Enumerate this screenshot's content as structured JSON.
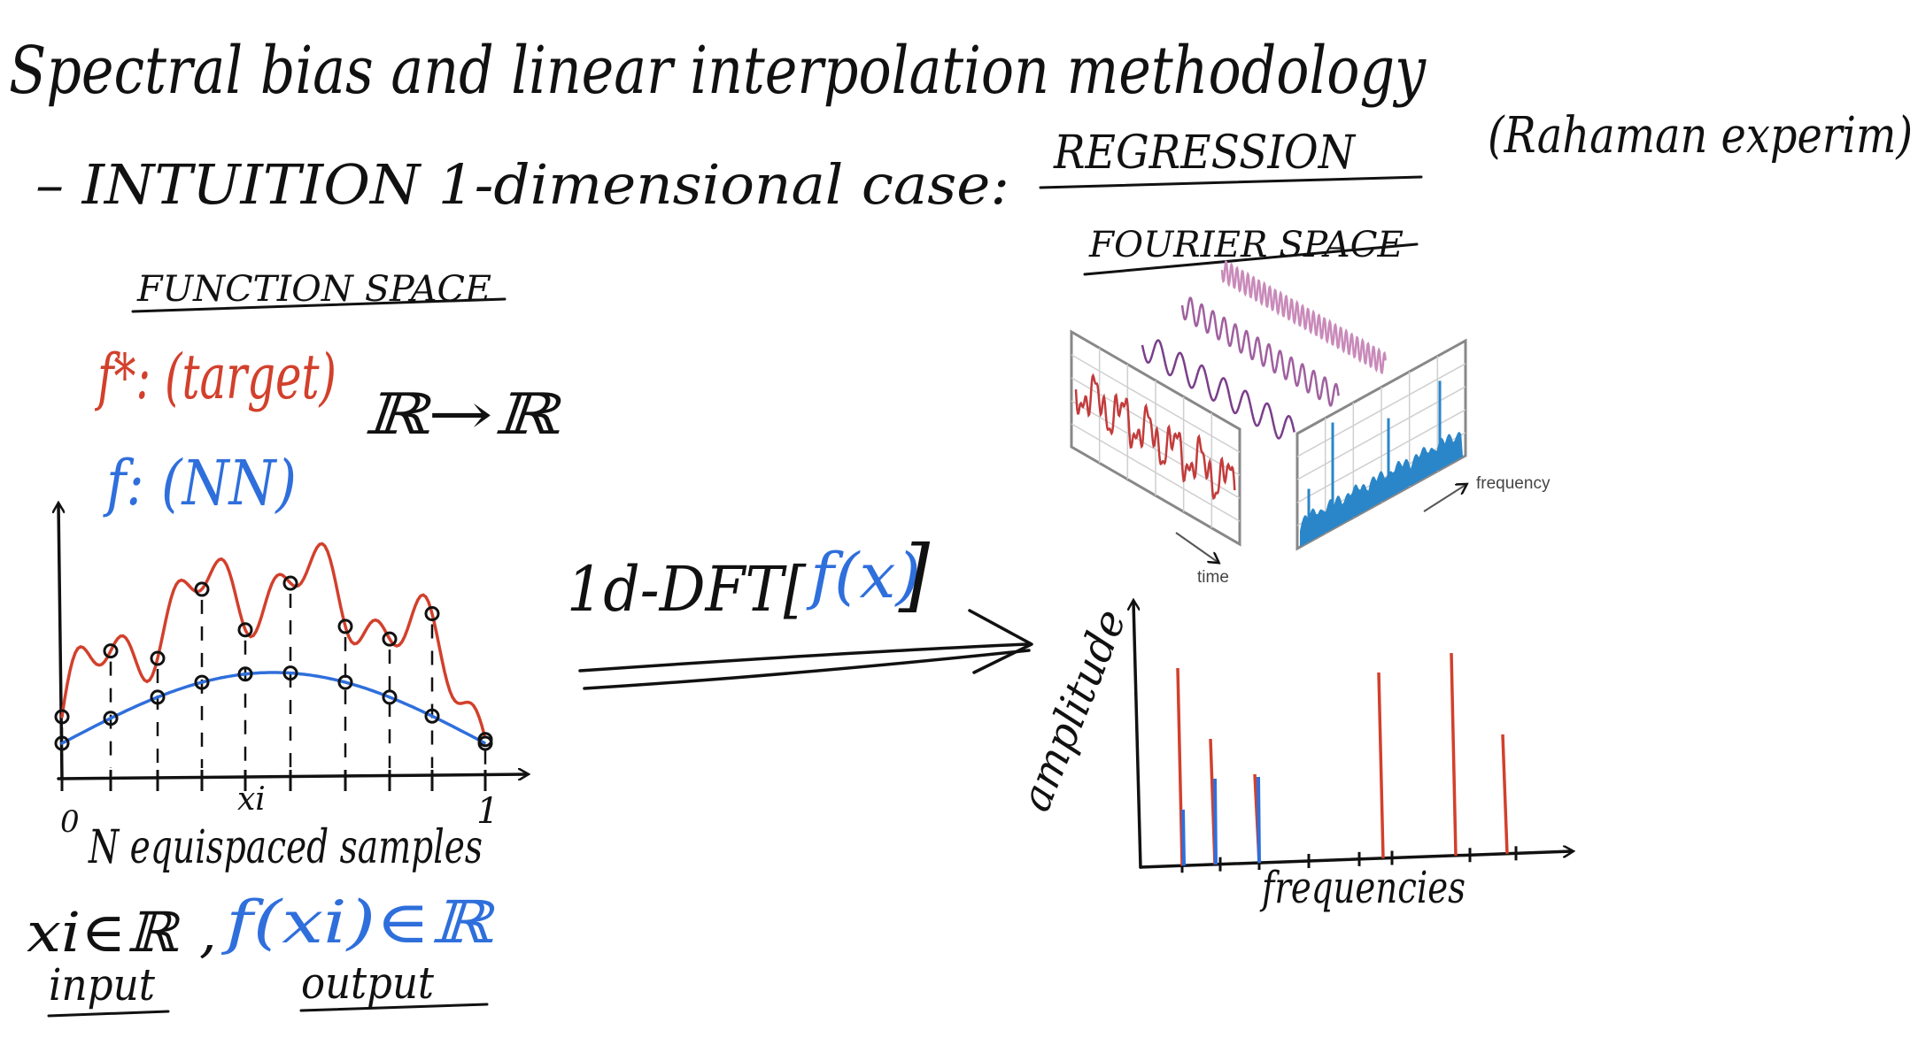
{
  "title": "Spectral bias and linear interpolation methodology",
  "subtitle": {
    "prefix": "– INTUITION 1-dimensional case:",
    "highlight": "REGRESSION",
    "note": "(Rahaman experim)"
  },
  "function_space": {
    "heading": "FUNCTION SPACE",
    "target_label": "f*: (target)",
    "mapping": "ℝ→ℝ",
    "nn_label": "f: (NN)",
    "x_start": "0",
    "x_end": "1",
    "xi_label": "xi",
    "samples_caption": "N equispaced samples",
    "input_expr": "xi∈ℝ",
    "comma": ",",
    "output_expr": "f(xi)∈ℝ",
    "input_label": "input",
    "output_label": "output",
    "colors": {
      "target": "#d2402c",
      "nn": "#2f6fdc",
      "ink": "#111111"
    }
  },
  "transform_label": {
    "prefix": "1d-DFT[",
    "arg": "f(x)",
    "suffix": "]"
  },
  "fourier_space": {
    "heading": "FOURIER SPACE",
    "illustration": {
      "time_label": "time",
      "frequency_label": "frequency",
      "wave_colors": [
        "#7a3f8a",
        "#a0609f",
        "#c98aba"
      ],
      "signal_color": "#c23b3b",
      "spectrum_color": "#2a86c9"
    },
    "plot": {
      "ylabel": "amplitude",
      "xlabel": "frequencies"
    }
  }
}
